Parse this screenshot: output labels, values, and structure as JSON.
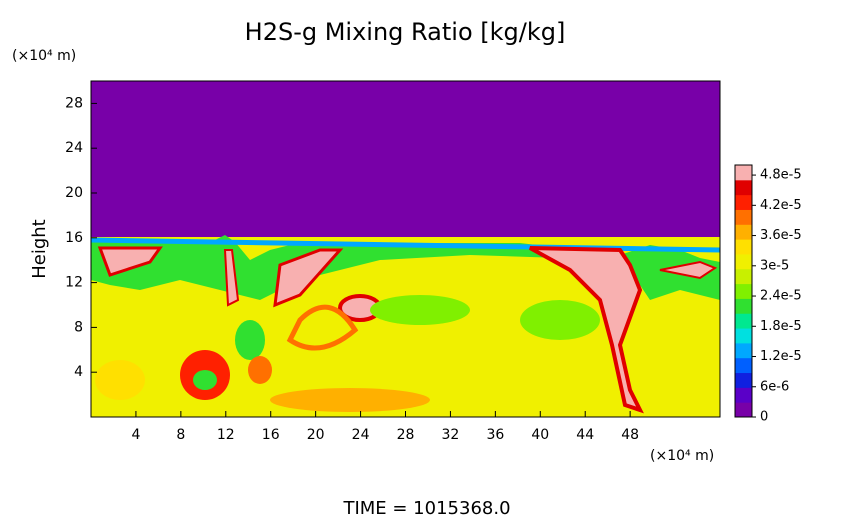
{
  "chart_data": {
    "type": "contour",
    "title": "H2S-g Mixing Ratio [kg/kg]",
    "ylabel": "Height",
    "yunit": "(×10⁴ m)",
    "xunit": "(×10⁴ m)",
    "footer": "TIME = 1015368.0",
    "xlim": [
      0,
      56
    ],
    "xticks": [
      4,
      8,
      12,
      16,
      20,
      24,
      28,
      32,
      36,
      40,
      44,
      48
    ],
    "ylim": [
      0,
      30
    ],
    "yticks": [
      4,
      8,
      12,
      16,
      20,
      24,
      28
    ],
    "colorbar": {
      "lim": [
        0,
        5e-05
      ],
      "ticks": [
        0,
        {
          "value": 6e-06,
          "label": "6e-6"
        },
        {
          "value": 1.2e-05,
          "label": "1.2e-5"
        },
        {
          "value": 1.8e-05,
          "label": "1.8e-5"
        },
        {
          "value": 2.4e-05,
          "label": "2.4e-5"
        },
        {
          "value": 3e-05,
          "label": "3e-5"
        },
        {
          "value": 3.6e-05,
          "label": "3.6e-5"
        },
        {
          "value": 4.2e-05,
          "label": "4.2e-5"
        },
        {
          "value": 4.8e-05,
          "label": "4.8e-5"
        }
      ],
      "colors": [
        "#7800a8",
        "#5a00c8",
        "#1020e0",
        "#0060ff",
        "#00a8ff",
        "#00e0e0",
        "#00e890",
        "#30e030",
        "#80f000",
        "#c8f000",
        "#f0f000",
        "#ffe000",
        "#ffb000",
        "#ff7000",
        "#ff2000",
        "#e00000",
        "#f8b0b0"
      ]
    }
  }
}
